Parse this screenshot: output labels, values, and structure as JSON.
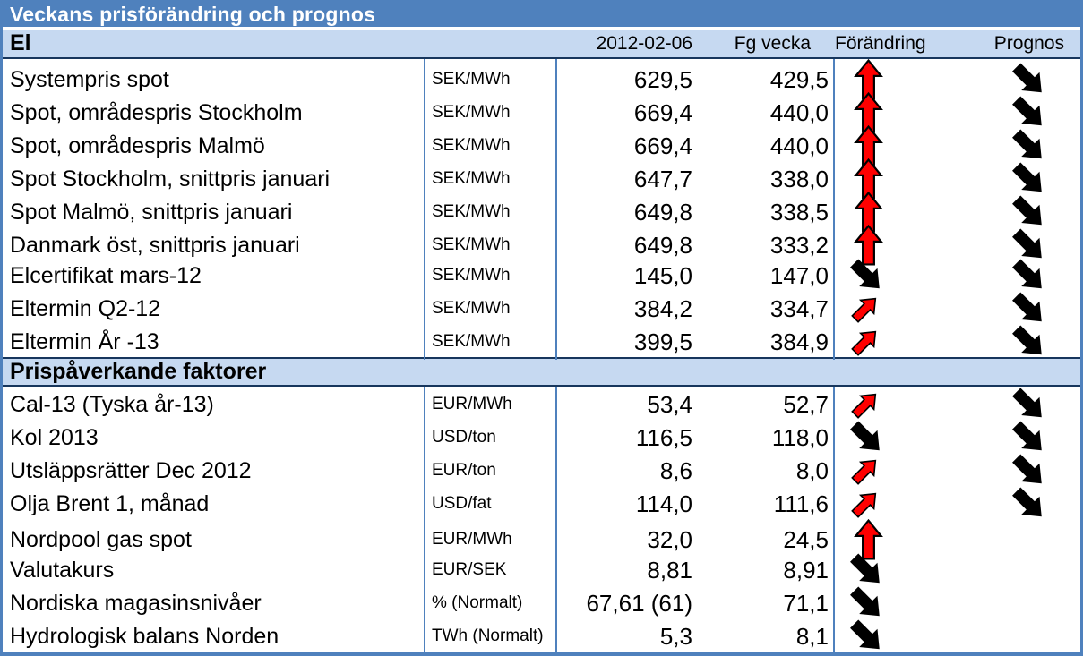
{
  "title": "Veckans prisförändring och prognos",
  "columns": {
    "date": "2012-02-06",
    "prev": "Fg vecka",
    "change": "Förändring",
    "forecast": "Prognos"
  },
  "sections": [
    {
      "label": "El",
      "rows": [
        {
          "label": "Systempris spot",
          "unit": "SEK/MWh",
          "current": "629,5",
          "prev": "429,5",
          "change": "up",
          "forecast": "down-diag"
        },
        {
          "label": "Spot, områdespris Stockholm",
          "unit": "SEK/MWh",
          "current": "669,4",
          "prev": "440,0",
          "change": "up",
          "forecast": "down-diag"
        },
        {
          "label": "Spot, områdespris Malmö",
          "unit": "SEK/MWh",
          "current": "669,4",
          "prev": "440,0",
          "change": "up",
          "forecast": "down-diag"
        },
        {
          "label": "Spot Stockholm, snittpris januari",
          "unit": "SEK/MWh",
          "current": "647,7",
          "prev": "338,0",
          "change": "up",
          "forecast": "down-diag"
        },
        {
          "label": "Spot Malmö, snittpris januari",
          "unit": "SEK/MWh",
          "current": "649,8",
          "prev": "338,5",
          "change": "up",
          "forecast": "down-diag"
        },
        {
          "label": "Danmark öst, snittpris januari",
          "unit": "SEK/MWh",
          "current": "649,8",
          "prev": "333,2",
          "change": "up",
          "forecast": "down-diag"
        },
        {
          "label": "Elcertifikat mars-12",
          "unit": "SEK/MWh",
          "current": "145,0",
          "prev": "147,0",
          "change": "down-diag",
          "forecast": "down-diag"
        },
        {
          "label": "Eltermin Q2-12",
          "unit": "SEK/MWh",
          "current": "384,2",
          "prev": "334,7",
          "change": "up-diag",
          "forecast": "down-diag"
        },
        {
          "label": "Eltermin År -13",
          "unit": "SEK/MWh",
          "current": "399,5",
          "prev": "384,9",
          "change": "up-diag",
          "forecast": "down-diag"
        }
      ]
    },
    {
      "label": "Prispåverkande faktorer",
      "rows": [
        {
          "label": "Cal-13 (Tyska år-13)",
          "unit": "EUR/MWh",
          "current": "53,4",
          "prev": "52,7",
          "change": "up-diag",
          "forecast": "down-diag"
        },
        {
          "label": "Kol 2013",
          "unit": "USD/ton",
          "current": "116,5",
          "prev": "118,0",
          "change": "down-diag",
          "forecast": "down-diag"
        },
        {
          "label": "Utsläppsrätter Dec 2012",
          "unit": "EUR/ton",
          "current": "8,6",
          "prev": "8,0",
          "change": "up-diag",
          "forecast": "down-diag"
        },
        {
          "label": "Olja Brent 1, månad",
          "unit": "USD/fat",
          "current": "114,0",
          "prev": "111,6",
          "change": "up-diag",
          "forecast": "down-diag"
        },
        {
          "label": "Nordpool gas spot",
          "unit": "EUR/MWh",
          "current": "32,0",
          "prev": "24,5",
          "change": "up",
          "forecast": ""
        },
        {
          "label": "Valutakurs",
          "unit": "EUR/SEK",
          "current": "8,81",
          "prev": "8,91",
          "change": "down-diag",
          "forecast": ""
        },
        {
          "label": "Nordiska magasinsnivåer",
          "unit": "% (Normalt)",
          "current": "67,61 (61)",
          "prev": "71,1",
          "change": "down-diag",
          "forecast": ""
        },
        {
          "label": "Hydrologisk balans Norden",
          "unit": "TWh (Normalt)",
          "current": "5,3",
          "prev": "8,1",
          "change": "down-diag",
          "forecast": ""
        }
      ]
    }
  ],
  "colors": {
    "header_bg": "#4F81BD",
    "section_bg": "#C6D9F1",
    "divider": "#4F81BD",
    "section_border": "#17365D",
    "arrow_up": "#FF0000",
    "arrow_down": "#000000"
  }
}
